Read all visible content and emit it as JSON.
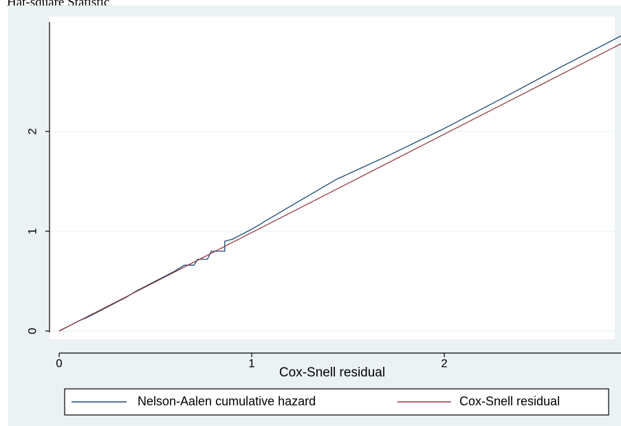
{
  "caption": "Hat-square Statistic",
  "chart_data": {
    "type": "line",
    "title": "",
    "xlabel": "Cox-Snell residual",
    "ylabel": "",
    "xlim": [
      0,
      2.95
    ],
    "ylim": [
      0,
      3.0
    ],
    "x_ticks": [
      0,
      1,
      2
    ],
    "x_tick_labels": [
      "0",
      "1",
      "2"
    ],
    "y_ticks": [
      0,
      1,
      2
    ],
    "y_tick_labels": [
      "0",
      "1",
      "2"
    ],
    "grid": true,
    "legend_position": "bottom",
    "series": [
      {
        "name": "Nelson-Aalen cumulative hazard",
        "color": "#1a476f",
        "step": true,
        "points": [
          [
            0,
            0
          ],
          [
            0.05,
            0.05
          ],
          [
            0.1,
            0.1
          ],
          [
            0.15,
            0.14
          ],
          [
            0.2,
            0.19
          ],
          [
            0.25,
            0.24
          ],
          [
            0.3,
            0.29
          ],
          [
            0.35,
            0.34
          ],
          [
            0.4,
            0.4
          ],
          [
            0.45,
            0.45
          ],
          [
            0.5,
            0.5
          ],
          [
            0.55,
            0.55
          ],
          [
            0.6,
            0.6
          ],
          [
            0.65,
            0.66
          ],
          [
            0.7,
            0.66
          ],
          [
            0.72,
            0.72
          ],
          [
            0.77,
            0.72
          ],
          [
            0.79,
            0.8
          ],
          [
            0.86,
            0.8
          ],
          [
            0.86,
            0.9
          ],
          [
            0.9,
            0.92
          ],
          [
            1.0,
            1.02
          ],
          [
            1.2,
            1.25
          ],
          [
            1.44,
            1.52
          ],
          [
            1.7,
            1.75
          ],
          [
            2.0,
            2.03
          ],
          [
            2.3,
            2.33
          ],
          [
            2.6,
            2.64
          ],
          [
            2.94,
            2.98
          ]
        ]
      },
      {
        "name": "Cox-Snell residual",
        "color": "#90353b",
        "step": false,
        "points": [
          [
            0,
            0
          ],
          [
            2.94,
            2.9
          ]
        ]
      }
    ]
  }
}
